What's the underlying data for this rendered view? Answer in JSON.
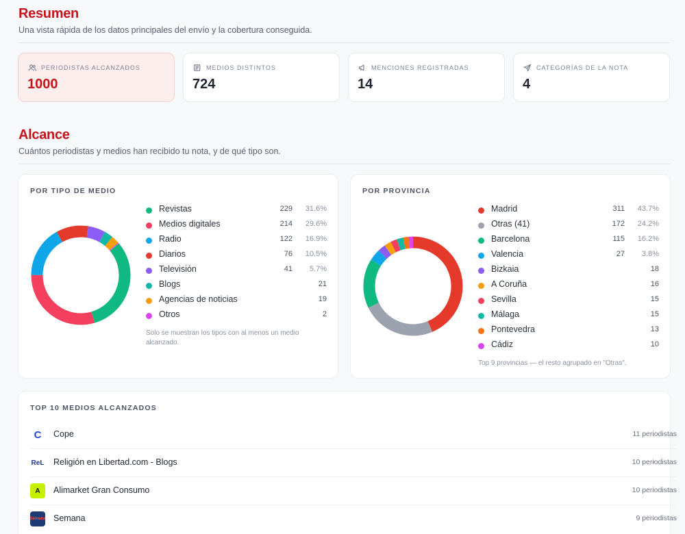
{
  "resumen": {
    "title": "Resumen",
    "subtitle": "Una vista rápida de los datos principales del envío y la cobertura conseguida.",
    "stats": [
      {
        "label": "PERIODISTAS ALCANZADOS",
        "value": "1000",
        "icon": "users-icon"
      },
      {
        "label": "MEDIOS DISTINTOS",
        "value": "724",
        "icon": "newspaper-icon"
      },
      {
        "label": "MENCIONES REGISTRADAS",
        "value": "14",
        "icon": "megaphone-icon"
      },
      {
        "label": "CATEGORÍAS DE LA NOTA",
        "value": "4",
        "icon": "send-icon"
      }
    ]
  },
  "alcance": {
    "title": "Alcance",
    "subtitle": "Cuántos periodistas y medios han recibido tu nota, y de qué tipo son."
  },
  "tipo_medio": {
    "title": "POR TIPO DE MEDIO",
    "note": "Solo se muestran los tipos con al menos un medio alcanzado.",
    "items": [
      {
        "name": "Revistas",
        "count": "229",
        "pct": "31.6%",
        "color": "#10b981"
      },
      {
        "name": "Medios digitales",
        "count": "214",
        "pct": "29.6%",
        "color": "#f43f5e"
      },
      {
        "name": "Radio",
        "count": "122",
        "pct": "16.9%",
        "color": "#0ea5e9"
      },
      {
        "name": "Diarios",
        "count": "76",
        "pct": "10.5%",
        "color": "#e5392b"
      },
      {
        "name": "Televisión",
        "count": "41",
        "pct": "5.7%",
        "color": "#8b5cf6"
      },
      {
        "name": "Blogs",
        "count": "21",
        "pct": "",
        "color": "#14b8a6"
      },
      {
        "name": "Agencias de noticias",
        "count": "19",
        "pct": "",
        "color": "#f59e0b"
      },
      {
        "name": "Otros",
        "count": "2",
        "pct": "",
        "color": "#d946ef"
      }
    ]
  },
  "provincia": {
    "title": "POR PROVINCIA",
    "note": "Top 9 provincias — el resto agrupado en \"Otras\".",
    "items": [
      {
        "name": "Madrid",
        "count": "311",
        "pct": "43.7%",
        "color": "#e5392b"
      },
      {
        "name": "Otras (41)",
        "count": "172",
        "pct": "24.2%",
        "color": "#9ca3af"
      },
      {
        "name": "Barcelona",
        "count": "115",
        "pct": "16.2%",
        "color": "#10b981"
      },
      {
        "name": "Valencia",
        "count": "27",
        "pct": "3.8%",
        "color": "#0ea5e9"
      },
      {
        "name": "Bizkaia",
        "count": "18",
        "pct": "",
        "color": "#8b5cf6"
      },
      {
        "name": "A Coruña",
        "count": "16",
        "pct": "",
        "color": "#f59e0b"
      },
      {
        "name": "Sevilla",
        "count": "15",
        "pct": "",
        "color": "#f43f5e"
      },
      {
        "name": "Málaga",
        "count": "15",
        "pct": "",
        "color": "#14b8a6"
      },
      {
        "name": "Pontevedra",
        "count": "13",
        "pct": "",
        "color": "#f97316"
      },
      {
        "name": "Cádiz",
        "count": "10",
        "pct": "",
        "color": "#d946ef"
      }
    ]
  },
  "top_medios": {
    "title": "TOP 10 MEDIOS ALCANZADOS",
    "items": [
      {
        "name": "Cope",
        "count": "11 periodistas",
        "logo_text": "C",
        "logo_bg": "#ffffff",
        "logo_fg": "#1d4ed8"
      },
      {
        "name": "Religión en Libertad.com - Blogs",
        "count": "10 periodistas",
        "logo_text": "ReL",
        "logo_bg": "#ffffff",
        "logo_fg": "#1e3a8a"
      },
      {
        "name": "Alimarket Gran Consumo",
        "count": "10 periodistas",
        "logo_text": "A",
        "logo_bg": "#c6f000",
        "logo_fg": "#111111"
      },
      {
        "name": "Semana",
        "count": "9 periodistas",
        "logo_text": "Semana",
        "logo_bg": "#1f3b73",
        "logo_fg": "#ff4b3a"
      }
    ]
  }
}
